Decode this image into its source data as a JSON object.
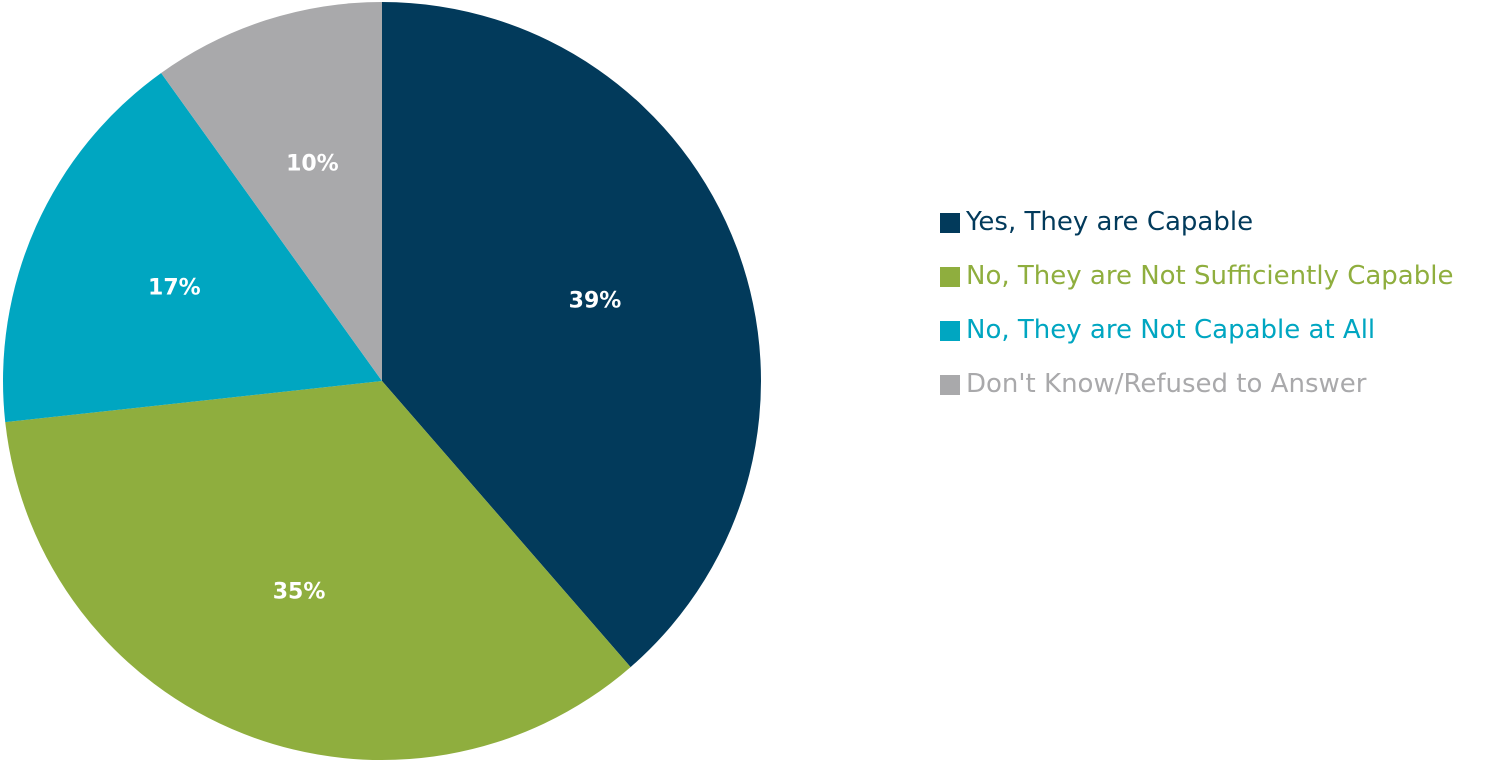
{
  "chart_data": {
    "type": "pie",
    "start_angle_deg": 0,
    "direction": "clockwise",
    "legend_position": "right",
    "slices": [
      {
        "name": "Yes, They are Capable",
        "value": 39,
        "label": "39%",
        "color": "#023a5b"
      },
      {
        "name": "No, They are Not Sufficiently Capable",
        "value": 35,
        "label": "35%",
        "color": "#8fae3e"
      },
      {
        "name": "No, They are Not Capable at All",
        "value": 17,
        "label": "17%",
        "color": "#00a6c1"
      },
      {
        "name": "Don't Know/Refused to Answer",
        "value": 10,
        "label": "10%",
        "color": "#a9a9ab"
      }
    ]
  }
}
